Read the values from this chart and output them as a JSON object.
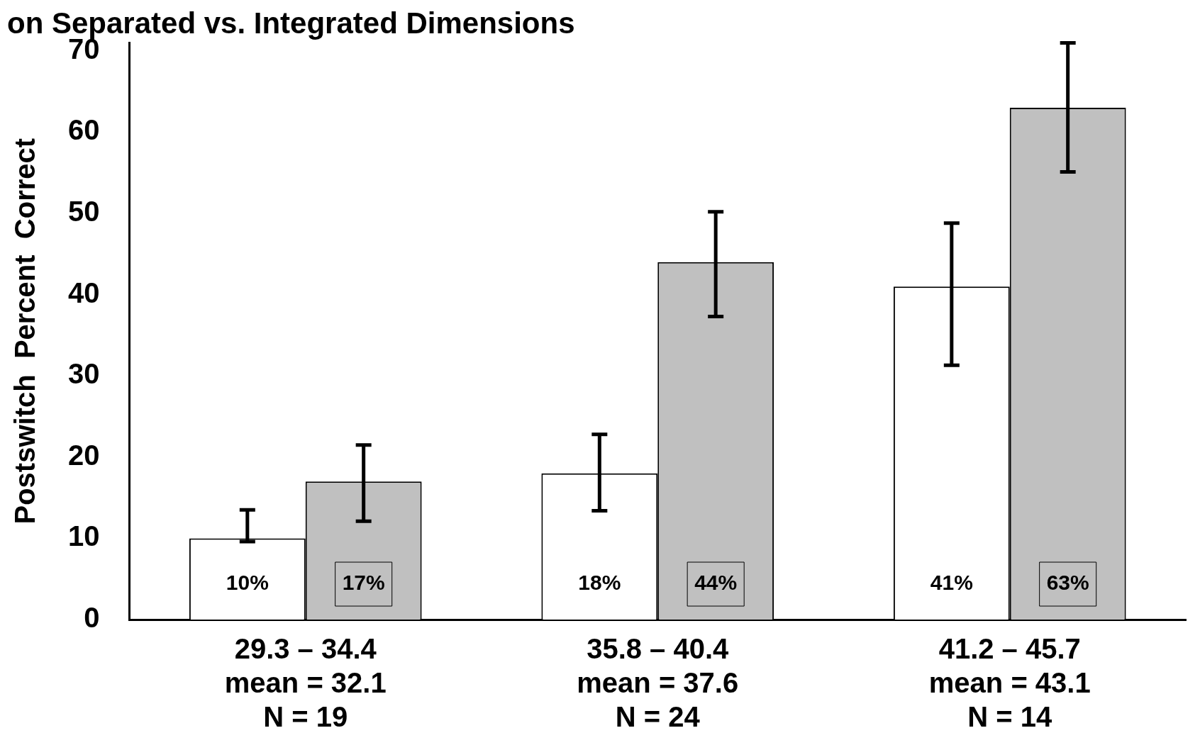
{
  "chart_data": {
    "type": "bar",
    "title": "on Separated vs. Integrated Dimensions",
    "ylabel": "Postswitch  Percent  Correct",
    "categories": [
      "29.3 – 34.4\nmean = 32.1\nN = 19",
      "35.8 – 40.4\nmean = 37.6\nN = 24",
      "41.2 – 45.7\nmean = 43.1\nN = 14"
    ],
    "series": [
      {
        "color": "#ffffff",
        "values": [
          10,
          18,
          41
        ],
        "value_labels": [
          "10%",
          "18%",
          "41%"
        ],
        "errors": [
          [
            9.6,
            13.5
          ],
          [
            13.4,
            22.8
          ],
          [
            31.3,
            48.8
          ]
        ]
      },
      {
        "color": "#c0c0c0",
        "values": [
          17,
          44,
          63
        ],
        "value_labels": [
          "17%",
          "44%",
          "63%"
        ],
        "errors": [
          [
            12.1,
            21.5
          ],
          [
            37.3,
            50.2
          ],
          [
            55.1,
            71
          ]
        ]
      }
    ],
    "ylim": [
      0,
      71
    ],
    "yticks": [
      0,
      10,
      20,
      30,
      40,
      50,
      60,
      70
    ],
    "grid": false,
    "legend": false
  }
}
